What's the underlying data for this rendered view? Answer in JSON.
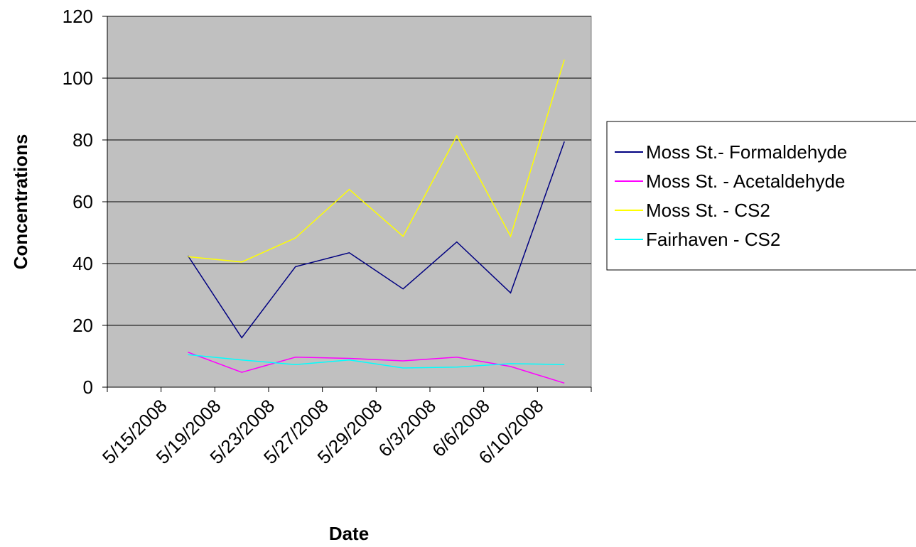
{
  "chart_data": {
    "type": "line",
    "title": "",
    "xlabel": "Date",
    "ylabel": "Concentrations",
    "ylim": [
      0,
      120
    ],
    "yticks": [
      0,
      20,
      40,
      60,
      80,
      100,
      120
    ],
    "grid": true,
    "legend_position": "right",
    "plot_background": "#c0c0c0",
    "categories": [
      "5/15/2008",
      "5/19/2008",
      "5/23/2008",
      "5/27/2008",
      "5/29/2008",
      "6/3/2008",
      "6/6/2008",
      "6/10/2008"
    ],
    "series": [
      {
        "name": "Moss St.- Formaldehyde",
        "color": "#000080",
        "values": [
          42.5,
          16,
          39,
          43.5,
          31.8,
          47,
          30.5,
          79.5
        ]
      },
      {
        "name": "Moss St. - Acetaldehyde",
        "color": "#ff00ff",
        "values": [
          11.3,
          4.8,
          9.7,
          9.3,
          8.5,
          9.7,
          6.7,
          1.3
        ]
      },
      {
        "name": "Moss St. - CS2",
        "color": "#ffff00",
        "values": [
          42.2,
          40.5,
          48.3,
          64,
          48.8,
          81.3,
          48.8,
          106
        ]
      },
      {
        "name": "Fairhaven - CS2",
        "color": "#00ffff",
        "values": [
          10.5,
          8.8,
          7.3,
          8.8,
          6.2,
          6.5,
          7.6,
          7.3
        ]
      }
    ]
  }
}
